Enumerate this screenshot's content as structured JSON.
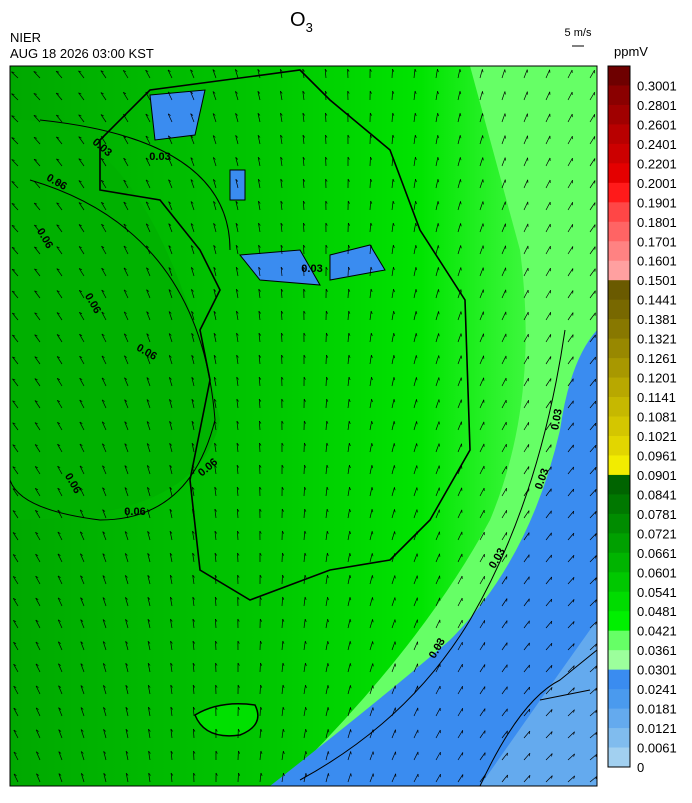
{
  "header": {
    "title": {
      "main": "O",
      "sub": "3"
    },
    "agency": "NIER",
    "datetime": "AUG 18 2026 03:00 KST",
    "vector_scale": "5 m/s",
    "unit": "ppmV"
  },
  "colorbar": [
    {
      "label": "0.3001",
      "color": "#6e0000"
    },
    {
      "label": "0.2801",
      "color": "#8a0000"
    },
    {
      "label": "0.2601",
      "color": "#a00000"
    },
    {
      "label": "0.2401",
      "color": "#b80000"
    },
    {
      "label": "0.2201",
      "color": "#cc0000"
    },
    {
      "label": "0.2001",
      "color": "#e40000"
    },
    {
      "label": "0.1901",
      "color": "#ff1a1a"
    },
    {
      "label": "0.1801",
      "color": "#ff4646"
    },
    {
      "label": "0.1701",
      "color": "#ff6464"
    },
    {
      "label": "0.1601",
      "color": "#ff8282"
    },
    {
      "label": "0.1501",
      "color": "#ffa0a0"
    },
    {
      "label": "0.1441",
      "color": "#6a5a00"
    },
    {
      "label": "0.1381",
      "color": "#786800"
    },
    {
      "label": "0.1321",
      "color": "#887800"
    },
    {
      "label": "0.1261",
      "color": "#988800"
    },
    {
      "label": "0.1201",
      "color": "#a89800"
    },
    {
      "label": "0.1141",
      "color": "#b8a800"
    },
    {
      "label": "0.1081",
      "color": "#c6b800"
    },
    {
      "label": "0.1021",
      "color": "#d4c600"
    },
    {
      "label": "0.0961",
      "color": "#e2d600"
    },
    {
      "label": "0.0901",
      "color": "#f2ec00"
    },
    {
      "label": "0.0841",
      "color": "#006400"
    },
    {
      "label": "0.0781",
      "color": "#007800"
    },
    {
      "label": "0.0721",
      "color": "#008c00"
    },
    {
      "label": "0.0661",
      "color": "#00a000"
    },
    {
      "label": "0.0601",
      "color": "#00b400"
    },
    {
      "label": "0.0541",
      "color": "#00c800"
    },
    {
      "label": "0.0481",
      "color": "#00dc00"
    },
    {
      "label": "0.0421",
      "color": "#00f000"
    },
    {
      "label": "0.0361",
      "color": "#66ff66"
    },
    {
      "label": "0.0301",
      "color": "#9cff9c"
    },
    {
      "label": "0.0241",
      "color": "#3a8cf0"
    },
    {
      "label": "0.0181",
      "color": "#4a9aee"
    },
    {
      "label": "0.0121",
      "color": "#64aaee"
    },
    {
      "label": "0.0061",
      "color": "#80bcee"
    },
    {
      "label": "0",
      "color": "#a2d0f0"
    }
  ],
  "contour_labels": [
    "0.06",
    "0.06",
    "0.06",
    "0.06",
    "0.06",
    "0.06",
    "0.06",
    "0.03",
    "0.03",
    "0.03",
    "0.03",
    "0.03",
    "0.03",
    "0.03"
  ]
}
